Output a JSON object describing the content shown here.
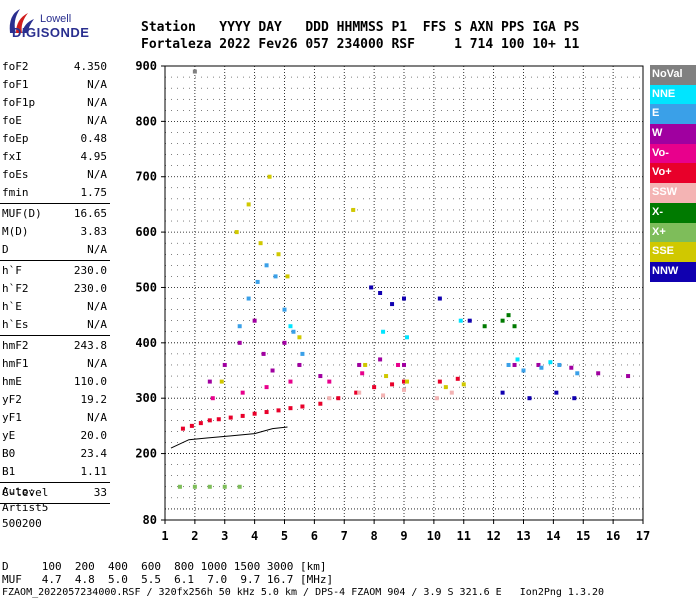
{
  "logo": {
    "line1": "Lowell",
    "line2": "DIGISONDE"
  },
  "header": {
    "line1": "Station   YYYY DAY   DDD HHMMSS P1  FFS S AXN PPS IGA PS",
    "line2": "Fortaleza 2022 Fev26 057 234000 RSF     1 714 100 10+ 11"
  },
  "params": [
    {
      "label": "foF2",
      "value": "4.350"
    },
    {
      "label": "foF1",
      "value": "N/A"
    },
    {
      "label": "foF1p",
      "value": "N/A"
    },
    {
      "label": "foE",
      "value": "N/A"
    },
    {
      "label": "foEp",
      "value": "0.48"
    },
    {
      "label": "fxI",
      "value": "4.95"
    },
    {
      "label": "foEs",
      "value": "N/A"
    },
    {
      "label": "fmin",
      "value": "1.75"
    },
    {
      "sep": true
    },
    {
      "label": "MUF(D)",
      "value": "16.65"
    },
    {
      "label": "M(D)",
      "value": "3.83"
    },
    {
      "label": "D",
      "value": "N/A"
    },
    {
      "sep": true
    },
    {
      "label": "h`F",
      "value": "230.0"
    },
    {
      "label": "h`F2",
      "value": "230.0"
    },
    {
      "label": "h`E",
      "value": "N/A"
    },
    {
      "label": "h`Es",
      "value": "N/A"
    },
    {
      "sep": true
    },
    {
      "label": "hmF2",
      "value": "243.8"
    },
    {
      "label": "hmF1",
      "value": "N/A"
    },
    {
      "label": "hmE",
      "value": "110.0"
    },
    {
      "label": "yF2",
      "value": "19.2"
    },
    {
      "label": "yF1",
      "value": "N/A"
    },
    {
      "label": "yE",
      "value": "20.0"
    },
    {
      "label": "B0",
      "value": "23.4"
    },
    {
      "label": "B1",
      "value": "1.11"
    },
    {
      "sep": true
    },
    {
      "label": "C-level",
      "value": "33"
    },
    {
      "sep": true
    }
  ],
  "auto": {
    "line1": "Auto:",
    "line2": "Artist5",
    "line3": "500200"
  },
  "footer": {
    "d_row": "D     100  200  400  600  800 1000 1500 3000 [km]",
    "muf_row": "MUF   4.7  4.8  5.0  5.5  6.1  7.0  9.7 16.7 [MHz]",
    "file_row": "FZAOM_2022057234000.RSF / 320fx256h 50 kHz 5.0 km / DPS-4 FZAOM 904 / 3.9 S 321.6 E   Ion2Png 1.3.20"
  },
  "legend": [
    {
      "label": "NoVal",
      "color": "#808080"
    },
    {
      "label": "NNE",
      "color": "#00e5ff"
    },
    {
      "label": "E",
      "color": "#3aa0e8"
    },
    {
      "label": "W",
      "color": "#a000a0"
    },
    {
      "label": "Vo-",
      "color": "#e8008c"
    },
    {
      "label": "Vo+",
      "color": "#e8002a"
    },
    {
      "label": "SSW",
      "color": "#f4b4b4"
    },
    {
      "label": "X-",
      "color": "#007a00"
    },
    {
      "label": "X+",
      "color": "#7ebd5a"
    },
    {
      "label": "SSE",
      "color": "#d0c800"
    },
    {
      "label": "NNW",
      "color": "#1000b0"
    }
  ],
  "chart_data": {
    "type": "scatter",
    "xlabel": "",
    "ylabel": "",
    "xlim": [
      1,
      17
    ],
    "ylim": [
      80,
      900
    ],
    "x_ticks": [
      1,
      2,
      3,
      4,
      5,
      6,
      7,
      8,
      9,
      10,
      11,
      12,
      13,
      14,
      15,
      16,
      17
    ],
    "y_ticks": [
      80,
      200,
      300,
      400,
      500,
      600,
      700,
      800,
      900
    ],
    "y_major": [
      100,
      200,
      300,
      400,
      500,
      600,
      700,
      800,
      900
    ],
    "grid": true,
    "legend_position": "right",
    "series": [
      {
        "name": "Vo+",
        "x": [
          1.6,
          1.9,
          2.2,
          2.5,
          2.8,
          3.2,
          3.6,
          4.0,
          4.4,
          4.8,
          5.2,
          5.6,
          6.2,
          6.8,
          7.4,
          8.0,
          8.6,
          9.0,
          10.2,
          10.8
        ],
        "y": [
          245,
          250,
          255,
          260,
          262,
          265,
          268,
          272,
          275,
          278,
          282,
          285,
          290,
          300,
          310,
          320,
          325,
          330,
          330,
          335
        ]
      },
      {
        "name": "W",
        "x": [
          2.5,
          3.0,
          3.5,
          4.0,
          4.3,
          4.6,
          5.0,
          5.5,
          6.2,
          7.5,
          8.2,
          9.0,
          12.7,
          13.5,
          14.6,
          15.5,
          16.5
        ],
        "y": [
          330,
          360,
          400,
          440,
          380,
          350,
          400,
          360,
          340,
          360,
          370,
          360,
          360,
          360,
          355,
          345,
          340
        ]
      },
      {
        "name": "E",
        "x": [
          3.5,
          3.8,
          4.1,
          4.4,
          4.7,
          5.0,
          5.3,
          5.6,
          12.5,
          13.0,
          13.6,
          14.2,
          14.8
        ],
        "y": [
          430,
          480,
          510,
          540,
          520,
          460,
          420,
          380,
          360,
          350,
          355,
          360,
          345
        ]
      },
      {
        "name": "SSE",
        "x": [
          2.9,
          3.4,
          3.8,
          4.2,
          4.5,
          4.8,
          5.1,
          5.5,
          7.3,
          7.7,
          8.4,
          9.1,
          10.4,
          11.0
        ],
        "y": [
          330,
          600,
          650,
          580,
          700,
          560,
          520,
          410,
          640,
          360,
          340,
          330,
          320,
          325
        ]
      },
      {
        "name": "NNW",
        "x": [
          7.9,
          8.2,
          8.6,
          9.0,
          10.2,
          11.2,
          12.3,
          13.2,
          14.1,
          14.7
        ],
        "y": [
          500,
          490,
          470,
          480,
          480,
          440,
          310,
          300,
          310,
          300
        ]
      },
      {
        "name": "NNE",
        "x": [
          5.2,
          8.3,
          9.1,
          10.9,
          12.8,
          13.9
        ],
        "y": [
          430,
          420,
          410,
          440,
          370,
          365
        ]
      },
      {
        "name": "X-",
        "x": [
          12.3,
          12.5,
          12.7,
          11.7
        ],
        "y": [
          440,
          450,
          430,
          430
        ]
      },
      {
        "name": "X+",
        "x": [
          1.5,
          2.0,
          2.5,
          3.0,
          3.5
        ],
        "y": [
          140,
          140,
          140,
          140,
          140
        ]
      },
      {
        "name": "SSW",
        "x": [
          6.5,
          7.5,
          8.3,
          9.0,
          10.1,
          10.6
        ],
        "y": [
          300,
          310,
          305,
          315,
          300,
          310
        ]
      },
      {
        "name": "Vo-",
        "x": [
          2.6,
          3.6,
          4.4,
          5.2,
          6.5,
          7.6,
          8.8
        ],
        "y": [
          300,
          310,
          320,
          330,
          330,
          345,
          360
        ]
      },
      {
        "name": "NoVal",
        "x": [
          2.0
        ],
        "y": [
          890
        ]
      }
    ],
    "profile_line": {
      "x": [
        1.2,
        1.8,
        2.4,
        3.2,
        4.0,
        4.6,
        5.1
      ],
      "y": [
        210,
        225,
        228,
        232,
        236,
        245,
        248
      ]
    }
  }
}
